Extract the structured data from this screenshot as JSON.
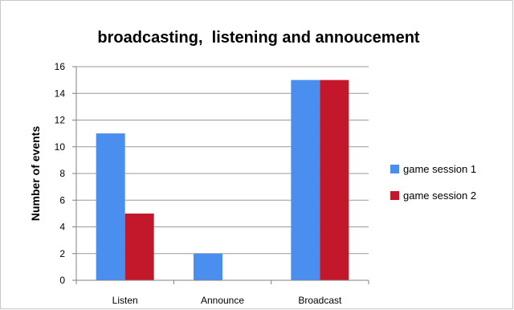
{
  "chart_data": {
    "type": "bar",
    "title": "broadcasting,  listening and annoucement",
    "xlabel": "",
    "ylabel": "Number of events",
    "categories": [
      "Listen",
      "Announce",
      "Broadcast"
    ],
    "series": [
      {
        "name": "game session 1",
        "values": [
          11,
          2,
          15
        ],
        "color": "#4a8ff0"
      },
      {
        "name": "game session 2",
        "values": [
          5,
          0,
          15
        ],
        "color": "#c3182b"
      }
    ],
    "ylim": [
      0,
      16
    ],
    "yticks": [
      0,
      2,
      4,
      6,
      8,
      10,
      12,
      14,
      16
    ],
    "grid": true,
    "legend_position": "right"
  }
}
